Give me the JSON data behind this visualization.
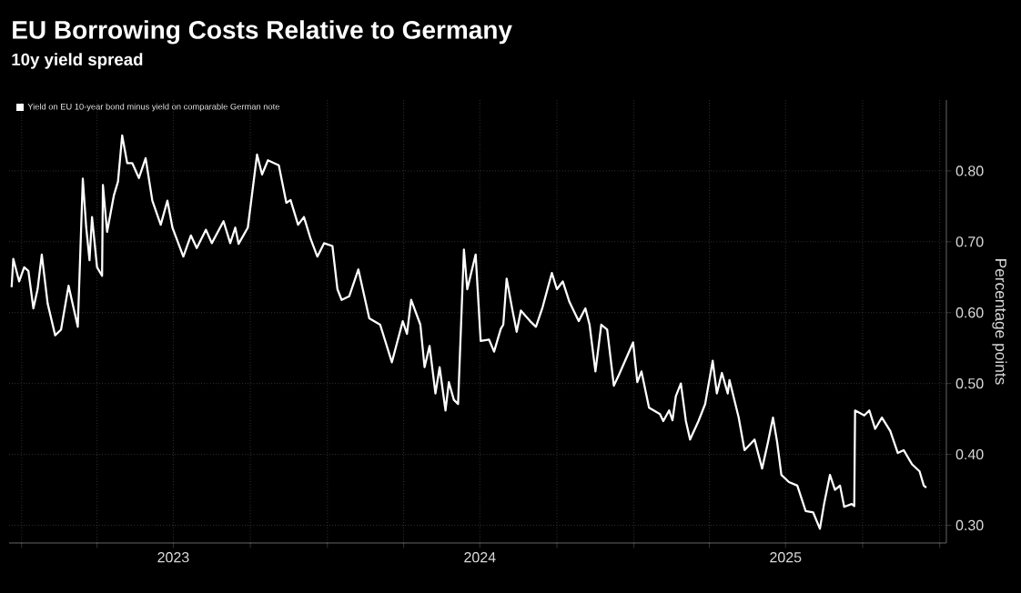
{
  "chart_data": {
    "type": "line",
    "title": "EU Borrowing Costs Relative to Germany",
    "subtitle": "10y yield spread",
    "ylabel": "Percentage points",
    "x": [
      "2022-12-20",
      "2022-12-22",
      "2022-12-29",
      "2023-01-04",
      "2023-01-09",
      "2023-01-15",
      "2023-01-20",
      "2023-01-25",
      "2023-02-01",
      "2023-02-10",
      "2023-02-17",
      "2023-02-26",
      "2023-03-09",
      "2023-03-15",
      "2023-03-19",
      "2023-03-23",
      "2023-03-26",
      "2023-04-01",
      "2023-04-07",
      "2023-04-08",
      "2023-04-13",
      "2023-04-21",
      "2023-04-26",
      "2023-05-01",
      "2023-05-07",
      "2023-05-13",
      "2023-05-21",
      "2023-05-29",
      "2023-06-06",
      "2023-06-16",
      "2023-06-24",
      "2023-06-30",
      "2023-07-13",
      "2023-07-22",
      "2023-07-29",
      "2023-08-09",
      "2023-08-16",
      "2023-08-30",
      "2023-09-07",
      "2023-09-13",
      "2023-09-17",
      "2023-09-28",
      "2023-10-09",
      "2023-10-15",
      "2023-10-22",
      "2023-11-04",
      "2023-11-13",
      "2023-11-18",
      "2023-11-27",
      "2023-12-04",
      "2023-12-12",
      "2023-12-20",
      "2023-12-28",
      "2024-01-07",
      "2024-01-13",
      "2024-01-18",
      "2024-01-27",
      "2024-02-07",
      "2024-02-20",
      "2024-03-04",
      "2024-03-18",
      "2024-03-31",
      "2024-04-05",
      "2024-04-10",
      "2024-04-21",
      "2024-04-26",
      "2024-05-02",
      "2024-05-09",
      "2024-05-14",
      "2024-05-21",
      "2024-05-25",
      "2024-05-31",
      "2024-06-05",
      "2024-06-12",
      "2024-06-16",
      "2024-06-26",
      "2024-07-02",
      "2024-07-12",
      "2024-07-18",
      "2024-07-26",
      "2024-07-29",
      "2024-08-02",
      "2024-08-09",
      "2024-08-14",
      "2024-08-19",
      "2024-08-30",
      "2024-09-06",
      "2024-09-14",
      "2024-09-25",
      "2024-10-01",
      "2024-10-08",
      "2024-10-16",
      "2024-10-27",
      "2024-11-04",
      "2024-11-09",
      "2024-11-16",
      "2024-11-23",
      "2024-11-30",
      "2024-12-08",
      "2024-12-14",
      "2024-12-24",
      "2024-12-31",
      "2025-01-05",
      "2025-01-10",
      "2025-01-19",
      "2025-02-01",
      "2025-02-05",
      "2025-02-12",
      "2025-02-16",
      "2025-02-20",
      "2025-02-26",
      "2025-03-04",
      "2025-03-09",
      "2025-03-19",
      "2025-03-27",
      "2025-04-05",
      "2025-04-10",
      "2025-04-16",
      "2025-04-23",
      "2025-04-25",
      "2025-05-06",
      "2025-05-13",
      "2025-05-25",
      "2025-06-03",
      "2025-06-10",
      "2025-06-16",
      "2025-06-21",
      "2025-06-26",
      "2025-07-05",
      "2025-07-15",
      "2025-07-25",
      "2025-08-03",
      "2025-08-11",
      "2025-08-16",
      "2025-08-23",
      "2025-08-29",
      "2025-09-04",
      "2025-09-09",
      "2025-09-18",
      "2025-09-21",
      "2025-09-22",
      "2025-10-03",
      "2025-10-09",
      "2025-10-16",
      "2025-10-24",
      "2025-11-03",
      "2025-11-12",
      "2025-11-19",
      "2025-11-29",
      "2025-12-08",
      "2025-12-13",
      "2025-12-16"
    ],
    "series": [
      {
        "name": "Yield on EU 10-year bond minus yield on comparable German note",
        "color": "#ffffff",
        "values": [
          0.636,
          0.676,
          0.644,
          0.664,
          0.659,
          0.606,
          0.633,
          0.682,
          0.613,
          0.568,
          0.576,
          0.638,
          0.58,
          0.789,
          0.721,
          0.674,
          0.735,
          0.664,
          0.652,
          0.78,
          0.714,
          0.765,
          0.785,
          0.85,
          0.811,
          0.811,
          0.79,
          0.818,
          0.758,
          0.724,
          0.758,
          0.72,
          0.679,
          0.709,
          0.691,
          0.717,
          0.698,
          0.729,
          0.698,
          0.72,
          0.697,
          0.72,
          0.823,
          0.795,
          0.815,
          0.808,
          0.755,
          0.759,
          0.724,
          0.735,
          0.704,
          0.679,
          0.698,
          0.694,
          0.633,
          0.618,
          0.623,
          0.661,
          0.592,
          0.583,
          0.53,
          0.588,
          0.57,
          0.618,
          0.583,
          0.523,
          0.553,
          0.486,
          0.523,
          0.462,
          0.502,
          0.477,
          0.471,
          0.689,
          0.633,
          0.682,
          0.56,
          0.562,
          0.545,
          0.577,
          0.583,
          0.648,
          0.603,
          0.573,
          0.603,
          0.588,
          0.58,
          0.608,
          0.656,
          0.633,
          0.644,
          0.615,
          0.588,
          0.606,
          0.583,
          0.517,
          0.583,
          0.576,
          0.497,
          0.512,
          0.539,
          0.558,
          0.502,
          0.517,
          0.466,
          0.457,
          0.447,
          0.462,
          0.448,
          0.482,
          0.5,
          0.447,
          0.421,
          0.447,
          0.471,
          0.532,
          0.486,
          0.515,
          0.486,
          0.505,
          0.452,
          0.406,
          0.421,
          0.38,
          0.417,
          0.452,
          0.417,
          0.371,
          0.361,
          0.356,
          0.32,
          0.318,
          0.295,
          0.33,
          0.371,
          0.35,
          0.356,
          0.326,
          0.33,
          0.327,
          0.462,
          0.455,
          0.462,
          0.436,
          0.452,
          0.433,
          0.402,
          0.406,
          0.386,
          0.376,
          0.356,
          0.353
        ]
      }
    ],
    "xlim": [
      "2022-12-17",
      "2026-01-09"
    ],
    "ylim": [
      0.275,
      0.9
    ],
    "xticks": [
      {
        "value": "2023-01-01",
        "label": null
      },
      {
        "value": "2023-04-01",
        "label": null
      },
      {
        "value": "2023-07-01",
        "label": "2023"
      },
      {
        "value": "2023-10-01",
        "label": null
      },
      {
        "value": "2024-01-01",
        "label": null
      },
      {
        "value": "2024-04-01",
        "label": null
      },
      {
        "value": "2024-07-01",
        "label": "2024"
      },
      {
        "value": "2024-10-01",
        "label": null
      },
      {
        "value": "2025-01-01",
        "label": null
      },
      {
        "value": "2025-04-01",
        "label": null
      },
      {
        "value": "2025-07-01",
        "label": "2025"
      },
      {
        "value": "2025-10-01",
        "label": null
      },
      {
        "value": "2026-01-01",
        "label": null
      }
    ],
    "yticks": [
      {
        "value": 0.3,
        "label": "0.30"
      },
      {
        "value": 0.4,
        "label": "0.40"
      },
      {
        "value": 0.5,
        "label": "0.50"
      },
      {
        "value": 0.6,
        "label": "0.60"
      },
      {
        "value": 0.7,
        "label": "0.70"
      },
      {
        "value": 0.8,
        "label": "0.80"
      }
    ],
    "grid": true,
    "legend": "top left"
  }
}
